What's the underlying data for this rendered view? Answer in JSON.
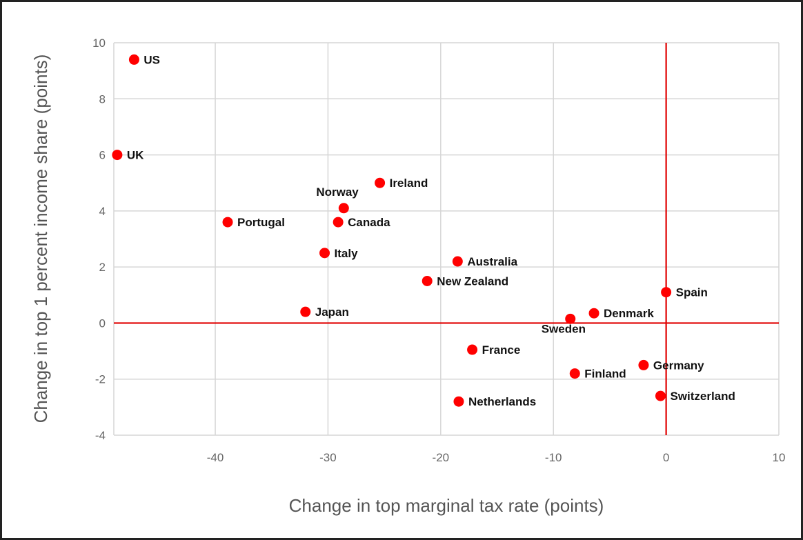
{
  "chart_data": {
    "type": "scatter",
    "title": "",
    "xlabel": "Change in top marginal tax rate (points)",
    "ylabel": "Change in top 1 percent income share (points)",
    "xlim": [
      -49,
      10
    ],
    "ylim": [
      -4,
      10
    ],
    "x_ticks": [
      -40,
      -30,
      -20,
      -10,
      0,
      10
    ],
    "y_ticks": [
      -4,
      -2,
      0,
      2,
      4,
      6,
      8,
      10
    ],
    "grid": true,
    "reference_lines": {
      "x": 0,
      "y": 0,
      "color": "#e00000"
    },
    "point_color": "#ff0000",
    "points": [
      {
        "label": "US",
        "x": -47.2,
        "y": 9.4
      },
      {
        "label": "UK",
        "x": -48.7,
        "y": 6.0
      },
      {
        "label": "Ireland",
        "x": -25.4,
        "y": 5.0
      },
      {
        "label": "Norway",
        "x": -28.6,
        "y": 4.1
      },
      {
        "label": "Portugal",
        "x": -38.9,
        "y": 3.6
      },
      {
        "label": "Canada",
        "x": -29.1,
        "y": 3.6
      },
      {
        "label": "Italy",
        "x": -30.3,
        "y": 2.5
      },
      {
        "label": "Australia",
        "x": -18.5,
        "y": 2.2
      },
      {
        "label": "New Zealand",
        "x": -21.2,
        "y": 1.5
      },
      {
        "label": "Spain",
        "x": 0.0,
        "y": 1.1
      },
      {
        "label": "Japan",
        "x": -32.0,
        "y": 0.4
      },
      {
        "label": "Denmark",
        "x": -6.4,
        "y": 0.35
      },
      {
        "label": "Sweden",
        "x": -8.5,
        "y": 0.15
      },
      {
        "label": "France",
        "x": -17.2,
        "y": -0.95
      },
      {
        "label": "Germany",
        "x": -2.0,
        "y": -1.5
      },
      {
        "label": "Finland",
        "x": -8.1,
        "y": -1.8
      },
      {
        "label": "Switzerland",
        "x": -0.5,
        "y": -2.6
      },
      {
        "label": "Netherlands",
        "x": -18.4,
        "y": -2.8
      }
    ]
  }
}
